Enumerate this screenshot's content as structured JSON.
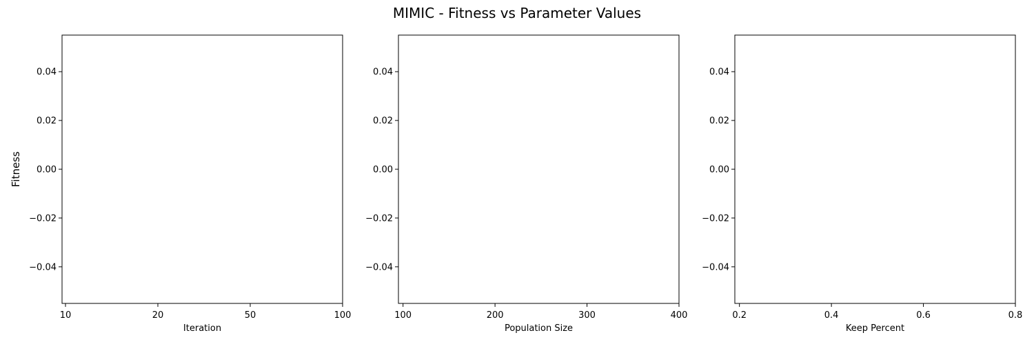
{
  "figure": {
    "title": "MIMIC - Fitness vs Parameter Values",
    "ylabel": "Fitness"
  },
  "chart_data": [
    {
      "type": "line",
      "xlabel": "Iteration",
      "x_scale": "categorical",
      "categories": [
        "10",
        "20",
        "50",
        "100"
      ],
      "ylim": [
        -0.055,
        0.055
      ],
      "yticks": [
        -0.04,
        -0.02,
        0.0,
        0.02,
        0.04
      ],
      "ytick_labels": [
        "−0.04",
        "−0.02",
        "0.00",
        "0.02",
        "0.04"
      ],
      "series": [],
      "grid": false
    },
    {
      "type": "line",
      "xlabel": "Population Size",
      "x_scale": "linear",
      "xlim": [
        95,
        400
      ],
      "xticks": [
        100,
        200,
        300,
        400
      ],
      "xtick_labels": [
        "100",
        "200",
        "300",
        "400"
      ],
      "ylim": [
        -0.055,
        0.055
      ],
      "yticks": [
        -0.04,
        -0.02,
        0.0,
        0.02,
        0.04
      ],
      "ytick_labels": [
        "−0.04",
        "−0.02",
        "0.00",
        "0.02",
        "0.04"
      ],
      "series": [],
      "grid": false
    },
    {
      "type": "line",
      "xlabel": "Keep Percent",
      "x_scale": "linear",
      "xlim": [
        0.19,
        0.8
      ],
      "xticks": [
        0.2,
        0.4,
        0.6,
        0.8
      ],
      "xtick_labels": [
        "0.2",
        "0.4",
        "0.6",
        "0.8"
      ],
      "ylim": [
        -0.055,
        0.055
      ],
      "yticks": [
        -0.04,
        -0.02,
        0.0,
        0.02,
        0.04
      ],
      "ytick_labels": [
        "−0.04",
        "−0.02",
        "0.00",
        "0.02",
        "0.04"
      ],
      "series": [],
      "grid": false
    }
  ]
}
